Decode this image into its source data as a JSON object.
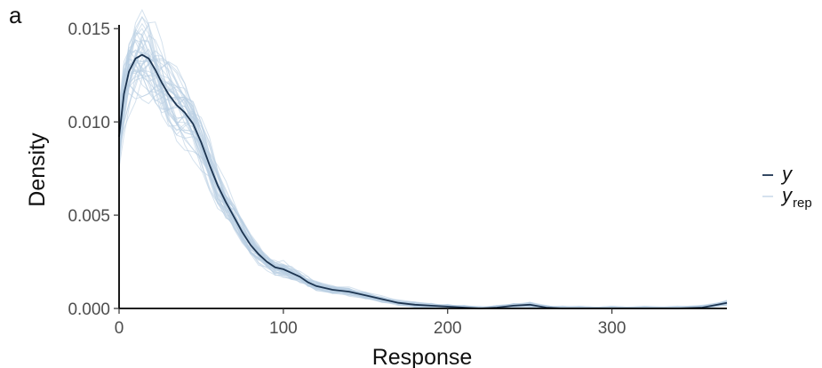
{
  "panel_label": "a",
  "chart_data": {
    "type": "line",
    "xlabel": "Response",
    "ylabel": "Density",
    "xlim": [
      0,
      370
    ],
    "ylim": [
      0,
      0.0152
    ],
    "x_ticks": [
      0,
      100,
      200,
      300
    ],
    "x_tick_labels": [
      "0",
      "100",
      "200",
      "300"
    ],
    "y_ticks": [
      0,
      0.005,
      0.01,
      0.015
    ],
    "y_tick_labels": [
      "0.000",
      "0.005",
      "0.010",
      "0.015"
    ],
    "grid": false,
    "legend_position": "right",
    "legend": [
      {
        "label": "y",
        "subscript": "",
        "color": "#1c3450"
      },
      {
        "label": "y",
        "subscript": "rep",
        "color": "#b9cfe3"
      }
    ],
    "series": [
      {
        "name": "y",
        "color": "#1c3450",
        "x": [
          0,
          3,
          6,
          10,
          14,
          18,
          22,
          26,
          30,
          35,
          40,
          45,
          50,
          55,
          60,
          65,
          70,
          75,
          80,
          85,
          90,
          95,
          100,
          105,
          110,
          115,
          120,
          130,
          140,
          150,
          160,
          170,
          180,
          190,
          200,
          210,
          220,
          230,
          240,
          250,
          260,
          270,
          280,
          300,
          320,
          340,
          355,
          370
        ],
        "y": [
          0.0092,
          0.0115,
          0.0127,
          0.0134,
          0.0136,
          0.0134,
          0.0128,
          0.0121,
          0.0115,
          0.0109,
          0.0105,
          0.0099,
          0.0089,
          0.0077,
          0.0066,
          0.0057,
          0.0049,
          0.0041,
          0.0034,
          0.0029,
          0.0025,
          0.0022,
          0.0021,
          0.0019,
          0.0017,
          0.0014,
          0.0012,
          0.001,
          0.0009,
          0.0007,
          0.0005,
          0.0003,
          0.0002,
          0.00015,
          0.0001,
          5e-05,
          0.0,
          5e-05,
          0.00015,
          0.0002,
          5e-05,
          0.0,
          0.0,
          0.0,
          0.0,
          0.0,
          5e-05,
          0.0003
        ]
      }
    ]
  }
}
